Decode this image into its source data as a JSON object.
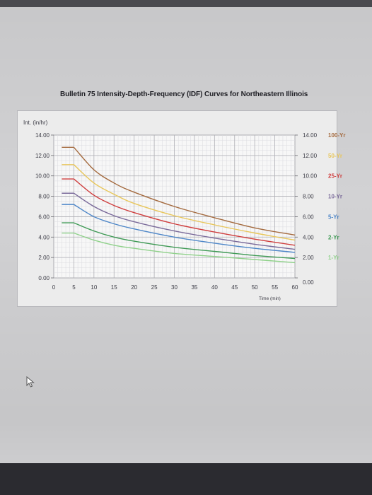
{
  "chart_data": {
    "type": "line",
    "title": "Bulletin 75 Intensity-Depth-Frequency (IDF) Curves for Northeastern Illinois",
    "ylabel": "Int. (in/hr)",
    "xlabel": "Time (min)",
    "xlim": [
      0,
      60
    ],
    "ylim": [
      0,
      14
    ],
    "x_ticks": [
      "0",
      "5",
      "10",
      "15",
      "20",
      "25",
      "30",
      "35",
      "40",
      "45",
      "50",
      "55",
      "60"
    ],
    "y_ticks_left": [
      "0.00",
      "2.00",
      "4.00",
      "6.00",
      "8.00",
      "10.00",
      "12.00",
      "14.00"
    ],
    "y_ticks_right": [
      "0.00",
      "2.00",
      "4.00",
      "6.00",
      "8.00",
      "10.00",
      "12.00",
      "14.00"
    ],
    "grid": true,
    "legend_position": "right",
    "x": [
      5,
      10,
      15,
      20,
      30,
      40,
      50,
      60
    ],
    "series": [
      {
        "name": "100-Yr",
        "color": "#a46a3e",
        "values": [
          12.8,
          10.6,
          9.3,
          8.4,
          7.0,
          5.9,
          4.9,
          4.2
        ]
      },
      {
        "name": "50-Yr",
        "color": "#e8c65a",
        "values": [
          11.1,
          9.3,
          8.2,
          7.3,
          6.1,
          5.2,
          4.4,
          3.7
        ]
      },
      {
        "name": "25-Yr",
        "color": "#cf3d3d",
        "values": [
          9.7,
          8.1,
          7.1,
          6.4,
          5.3,
          4.5,
          3.8,
          3.2
        ]
      },
      {
        "name": "10-Yr",
        "color": "#7a6a9a",
        "values": [
          8.3,
          7.0,
          6.1,
          5.5,
          4.6,
          3.9,
          3.3,
          2.8
        ]
      },
      {
        "name": "5-Yr",
        "color": "#4d86c8",
        "values": [
          7.2,
          6.0,
          5.3,
          4.8,
          4.0,
          3.4,
          2.9,
          2.5
        ]
      },
      {
        "name": "2-Yr",
        "color": "#3f9a55",
        "values": [
          5.4,
          4.6,
          4.0,
          3.6,
          3.0,
          2.6,
          2.2,
          1.9
        ]
      },
      {
        "name": "1-Yr",
        "color": "#8fd18a",
        "values": [
          4.4,
          3.7,
          3.2,
          2.9,
          2.4,
          2.1,
          1.8,
          1.5
        ]
      }
    ]
  }
}
